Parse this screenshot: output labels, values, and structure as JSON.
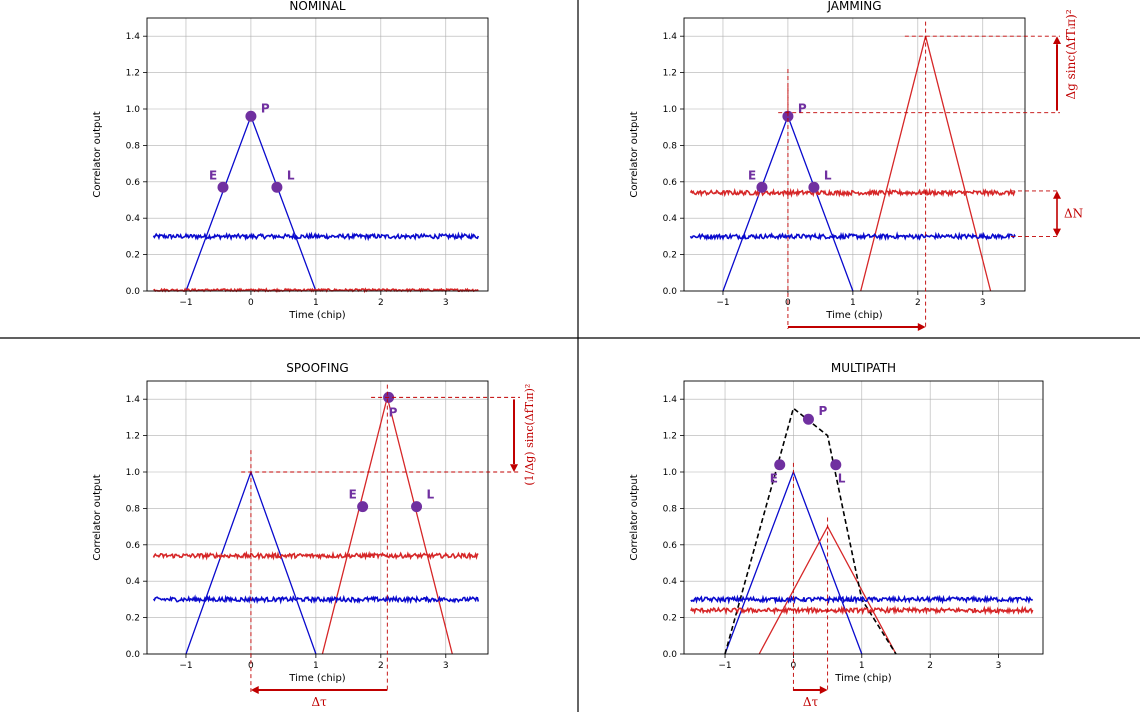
{
  "colors": {
    "blue": "#0a0acd",
    "red": "#d62728",
    "purple": "#7030a0",
    "dark_red": "#c00000",
    "grid": "#b0b0b0",
    "divider": "#000000"
  },
  "chart_data": [
    {
      "id": "nominal",
      "title": "NOMINAL",
      "type": "line",
      "xlabel": "Time (chip)",
      "ylabel": "Correlator output",
      "xlim": [
        -1.6,
        3.65
      ],
      "ylim": [
        0,
        1.5
      ],
      "xticks": [
        -1,
        0,
        1,
        2,
        3
      ],
      "yticks": [
        0.0,
        0.2,
        0.4,
        0.6,
        0.8,
        1.0,
        1.2,
        1.4
      ],
      "grid": true,
      "series": [
        {
          "kind": "triangle",
          "color": "blue",
          "points": [
            [
              -1,
              0
            ],
            [
              0,
              0.96
            ],
            [
              1,
              0
            ]
          ]
        },
        {
          "kind": "noise",
          "color": "blue",
          "level": 0.3,
          "amp": 0.012,
          "x": [
            -1.5,
            3.5
          ]
        },
        {
          "kind": "noise",
          "color": "red",
          "level": 0.005,
          "amp": 0.006,
          "x": [
            -1.5,
            3.5
          ]
        }
      ],
      "markers": [
        {
          "label": "E",
          "x": -0.43,
          "y": 0.57
        },
        {
          "label": "P",
          "x": 0.0,
          "y": 0.96
        },
        {
          "label": "L",
          "x": 0.4,
          "y": 0.57
        }
      ],
      "annotations": []
    },
    {
      "id": "jamming",
      "title": "JAMMING",
      "type": "line",
      "xlabel": "Time (chip)",
      "ylabel": "Correlator output",
      "xlim": [
        -1.6,
        3.65
      ],
      "ylim": [
        0,
        1.5
      ],
      "xticks": [
        -1,
        0,
        1,
        2,
        3
      ],
      "yticks": [
        0.0,
        0.2,
        0.4,
        0.6,
        0.8,
        1.0,
        1.2,
        1.4
      ],
      "grid": true,
      "series": [
        {
          "kind": "triangle",
          "color": "blue",
          "points": [
            [
              -1,
              0
            ],
            [
              0,
              0.96
            ],
            [
              1,
              0
            ]
          ]
        },
        {
          "kind": "triangle",
          "color": "red",
          "points": [
            [
              1.12,
              0
            ],
            [
              2.12,
              1.4
            ],
            [
              3.12,
              0
            ]
          ]
        },
        {
          "kind": "noise",
          "color": "blue",
          "level": 0.3,
          "amp": 0.012,
          "x": [
            -1.5,
            3.5
          ]
        },
        {
          "kind": "noise",
          "color": "red",
          "level": 0.54,
          "amp": 0.012,
          "x": [
            -1.5,
            3.5
          ]
        }
      ],
      "markers": [
        {
          "label": "E",
          "x": -0.4,
          "y": 0.57
        },
        {
          "label": "P",
          "x": 0.0,
          "y": 0.96
        },
        {
          "label": "L",
          "x": 0.4,
          "y": 0.57
        }
      ],
      "annotations": [
        {
          "text": "Δg sinc(ΔfTᵢπ)²",
          "between": [
            0.98,
            1.4
          ],
          "style": "right"
        },
        {
          "text": "ΔN",
          "between": [
            0.3,
            0.55
          ],
          "style": "right"
        },
        {
          "text": "",
          "from": 0.0,
          "to": 2.12,
          "style": "below-arrow"
        }
      ]
    },
    {
      "id": "spoofing",
      "title": "SPOOFING",
      "type": "line",
      "xlabel": "Time (chip)",
      "ylabel": "Correlator output",
      "xlim": [
        -1.6,
        3.65
      ],
      "ylim": [
        0,
        1.5
      ],
      "xticks": [
        -1,
        0,
        1,
        2,
        3
      ],
      "yticks": [
        0.0,
        0.2,
        0.4,
        0.6,
        0.8,
        1.0,
        1.2,
        1.4
      ],
      "grid": true,
      "series": [
        {
          "kind": "triangle",
          "color": "blue",
          "points": [
            [
              -1,
              0
            ],
            [
              0,
              1.0
            ],
            [
              1,
              0
            ]
          ]
        },
        {
          "kind": "triangle",
          "color": "red",
          "points": [
            [
              1.1,
              0
            ],
            [
              2.1,
              1.41
            ],
            [
              3.1,
              0
            ]
          ]
        },
        {
          "kind": "noise",
          "color": "blue",
          "level": 0.3,
          "amp": 0.012,
          "x": [
            -1.5,
            3.5
          ]
        },
        {
          "kind": "noise",
          "color": "red",
          "level": 0.54,
          "amp": 0.012,
          "x": [
            -1.5,
            3.5
          ]
        }
      ],
      "markers": [
        {
          "label": "E",
          "x": 1.72,
          "y": 0.81
        },
        {
          "label": "P",
          "x": 2.12,
          "y": 1.41
        },
        {
          "label": "L",
          "x": 2.55,
          "y": 0.81
        }
      ],
      "annotations": [
        {
          "text": "(1/Δg) sinc(ΔfTᵢπ)²",
          "between": [
            1.0,
            1.41
          ],
          "style": "right-down"
        },
        {
          "text": "Δτ",
          "from": 2.1,
          "to": 0.0,
          "style": "below-arrow"
        }
      ]
    },
    {
      "id": "multipath",
      "title": "MULTIPATH",
      "type": "line",
      "xlabel": "Time (chip)",
      "ylabel": "Correlator output",
      "xlim": [
        -1.6,
        3.65
      ],
      "ylim": [
        0,
        1.5
      ],
      "xticks": [
        -1,
        0,
        1,
        2,
        3
      ],
      "yticks": [
        0.0,
        0.2,
        0.4,
        0.6,
        0.8,
        1.0,
        1.2,
        1.4
      ],
      "grid": true,
      "series": [
        {
          "kind": "triangle",
          "color": "blue",
          "points": [
            [
              -1,
              0
            ],
            [
              0,
              1.0
            ],
            [
              1,
              0
            ]
          ]
        },
        {
          "kind": "triangle",
          "color": "red",
          "points": [
            [
              -0.5,
              0
            ],
            [
              0.5,
              0.7
            ],
            [
              1.5,
              0
            ]
          ]
        },
        {
          "kind": "dashed",
          "color": "black",
          "points": [
            [
              -1,
              0
            ],
            [
              0,
              1.35
            ],
            [
              0.5,
              1.2
            ],
            [
              1.0,
              0.3
            ],
            [
              1.5,
              0
            ]
          ]
        },
        {
          "kind": "noise",
          "color": "blue",
          "level": 0.3,
          "amp": 0.012,
          "x": [
            -1.5,
            3.5
          ]
        },
        {
          "kind": "noise",
          "color": "red",
          "level": 0.24,
          "amp": 0.012,
          "x": [
            -1.5,
            3.5
          ]
        }
      ],
      "markers": [
        {
          "label": "E",
          "x": -0.2,
          "y": 1.04
        },
        {
          "label": "P",
          "x": 0.22,
          "y": 1.29
        },
        {
          "label": "L",
          "x": 0.62,
          "y": 1.04
        }
      ],
      "annotations": [
        {
          "text": "Δτ",
          "from": 0.0,
          "to": 0.5,
          "style": "below-arrow"
        }
      ]
    }
  ]
}
